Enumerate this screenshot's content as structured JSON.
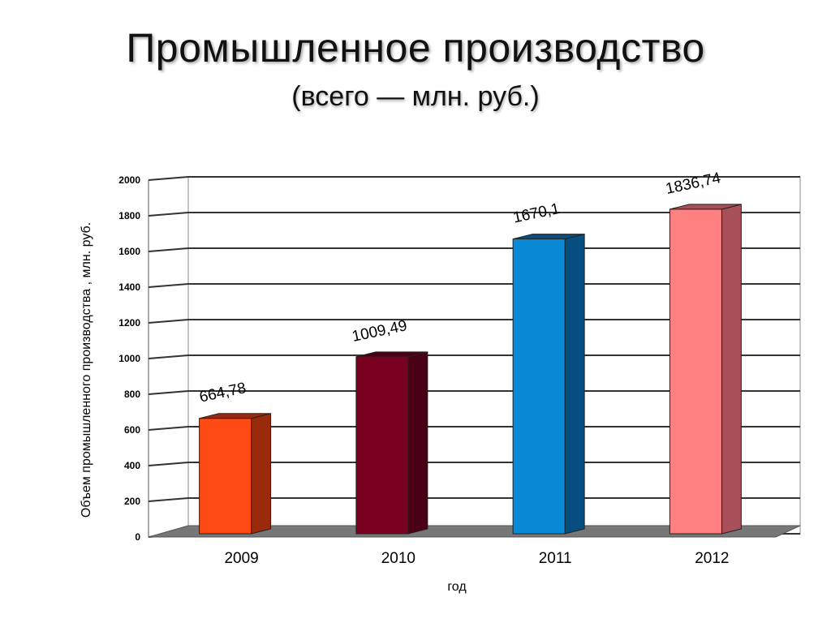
{
  "header": {
    "title": "Промышленное производство",
    "subtitle": "(всего — млн. руб.)"
  },
  "chart_data": {
    "type": "bar",
    "categories": [
      "2009",
      "2010",
      "2011",
      "2012"
    ],
    "values": [
      664.78,
      1009.49,
      1670.1,
      1836.74
    ],
    "data_labels": [
      "664,78",
      "1009,49",
      "1670,1",
      "1836,74"
    ],
    "colors": [
      "#FF4A14",
      "#7A0020",
      "#0A8AD6",
      "#FF8080"
    ],
    "side_colors": [
      "#9A2A0C",
      "#4A0014",
      "#064E80",
      "#A8505A"
    ],
    "xlabel": "год",
    "ylabel": "Объем промышленного производства , млн. руб.",
    "ylim": [
      0,
      2000
    ],
    "yticks": [
      0,
      200,
      400,
      600,
      800,
      1000,
      1200,
      1400,
      1600,
      1800,
      2000
    ],
    "grid": true,
    "style": "3d-column"
  }
}
